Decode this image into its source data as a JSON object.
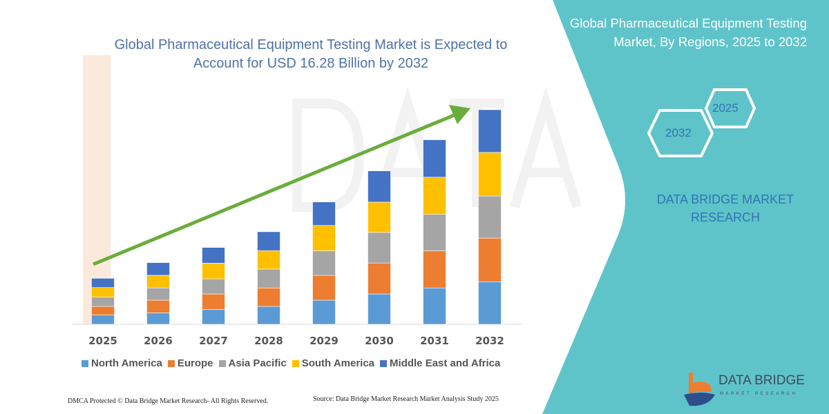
{
  "title": "Global Pharmaceutical Equipment Testing Market is Expected to Account for USD 16.28 Billion by 2032",
  "side_panel": {
    "title": "Global Pharmaceutical Equipment Testing Market, By Regions, 2025 to 2032",
    "hex_start": "2025",
    "hex_end": "2032",
    "brand": "DATA BRIDGE MARKET RESEARCH",
    "logo_text": "DATA BRIDGE",
    "logo_sub": "MARKET RESEARCH",
    "panel_color": "#5fc4c9"
  },
  "watermark": "DATA BRIDGE",
  "footer": {
    "left": "DMCA Protected © Data Bridge Market Research-  All Rights Reserved.",
    "right": "Source: Data Bridge Market Research  Market Analysis Study 2025"
  },
  "chart_data": {
    "type": "bar",
    "stacked": true,
    "title": "Global Pharmaceutical Equipment Testing Market is Expected to Account for USD 16.28 Billion by 2032",
    "categories": [
      "2025",
      "2026",
      "2027",
      "2028",
      "2029",
      "2030",
      "2031",
      "2032"
    ],
    "y_axis_visible": false,
    "grid": false,
    "legend_position": "bottom",
    "trend_arrow_color": "#6aad3d",
    "series": [
      {
        "name": "North America",
        "color": "#5b9bd5",
        "values": [
          0.7,
          0.87,
          1.13,
          1.36,
          1.83,
          2.3,
          2.76,
          3.23
        ]
      },
      {
        "name": "Europe",
        "color": "#ed7d31",
        "values": [
          0.66,
          0.96,
          1.17,
          1.4,
          1.88,
          2.35,
          2.82,
          3.31
        ]
      },
      {
        "name": "Asia Pacific",
        "color": "#a5a5a5",
        "values": [
          0.7,
          0.93,
          1.15,
          1.43,
          1.87,
          2.32,
          2.76,
          3.19
        ]
      },
      {
        "name": "South America",
        "color": "#ffc000",
        "values": [
          0.73,
          0.96,
          1.19,
          1.4,
          1.92,
          2.3,
          2.82,
          3.31
        ]
      },
      {
        "name": "Middle East and Africa",
        "color": "#4472c4",
        "values": [
          0.7,
          0.96,
          1.19,
          1.43,
          1.78,
          2.37,
          2.84,
          3.24
        ]
      }
    ]
  }
}
